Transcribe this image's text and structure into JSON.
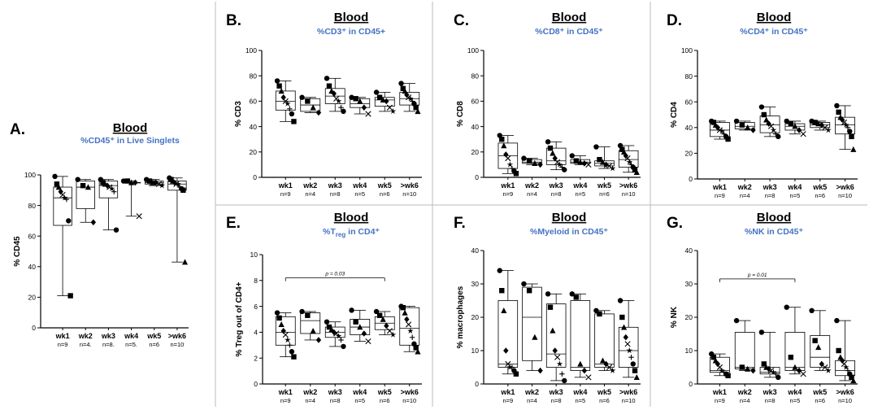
{
  "colors": {
    "title": "#000000",
    "subtitle": "#4472c4",
    "marks": "#000000"
  },
  "groups": [
    "wk1",
    "wk2",
    "wk3",
    "wk4",
    "wk5",
    ">wk6"
  ],
  "chart_data": [
    {
      "type": "boxplot",
      "panel": "A.",
      "title": "Blood",
      "subtitle": "%CD45⁺ in Live Singlets",
      "ylabel": "% CD45",
      "ylim": [
        0,
        100
      ],
      "yticks": [
        0,
        20,
        40,
        60,
        80,
        100
      ],
      "categories": [
        "wk1",
        "wk2",
        "wk3",
        "wk4",
        "wk5",
        ">wk6"
      ],
      "n_labels": [
        "n=9",
        "n=4.",
        "n=8.",
        "n=5.",
        "n=6",
        "n=10"
      ],
      "boxes": [
        {
          "min": 21,
          "q1": 67,
          "median": 85,
          "q3": 92,
          "max": 99
        },
        {
          "min": 69,
          "q1": 78,
          "median": 92,
          "q3": 96,
          "max": 97
        },
        {
          "min": 64,
          "q1": 85,
          "median": 93,
          "q3": 96,
          "max": 97
        },
        {
          "min": 73,
          "q1": 95,
          "median": 95,
          "q3": 95,
          "max": 96
        },
        {
          "min": 93,
          "q1": 94,
          "median": 95,
          "q3": 96,
          "max": 97
        },
        {
          "min": 43,
          "q1": 90,
          "median": 94,
          "q3": 96,
          "max": 98
        }
      ],
      "points": [
        [
          99,
          94,
          92,
          89,
          87,
          85,
          84,
          70,
          21
        ],
        [
          97,
          93,
          92,
          69
        ],
        [
          97,
          95,
          94,
          93,
          92,
          91,
          89,
          64
        ],
        [
          96,
          96,
          95,
          95,
          73
        ],
        [
          97,
          96,
          95,
          95,
          94,
          93
        ],
        [
          98,
          97,
          96,
          95,
          94,
          94,
          92,
          91,
          90,
          43
        ]
      ]
    },
    {
      "type": "boxplot",
      "panel": "B.",
      "title": "Blood",
      "subtitle": "%CD3⁺ in CD45+",
      "ylabel": "% CD3",
      "ylim": [
        0,
        100
      ],
      "yticks": [
        0,
        20,
        40,
        60,
        80,
        100
      ],
      "categories": [
        "wk1",
        "wk2",
        "wk3",
        "wk4",
        "wk5",
        ">wk6"
      ],
      "n_labels": [
        "n=9",
        "n=4",
        "n=8",
        "n=5",
        "n=6",
        "n=10"
      ],
      "boxes": [
        {
          "min": 44,
          "q1": 53,
          "median": 60,
          "q3": 68,
          "max": 76
        },
        {
          "min": 51,
          "q1": 52,
          "median": 57,
          "q3": 62,
          "max": 63
        },
        {
          "min": 52,
          "q1": 58,
          "median": 64,
          "q3": 70,
          "max": 78
        },
        {
          "min": 50,
          "q1": 55,
          "median": 58,
          "q3": 62,
          "max": 63
        },
        {
          "min": 52,
          "q1": 56,
          "median": 61,
          "q3": 63,
          "max": 67
        },
        {
          "min": 52,
          "q1": 57,
          "median": 62,
          "q3": 67,
          "max": 74
        }
      ],
      "points": [
        [
          76,
          72,
          68,
          63,
          60,
          58,
          54,
          50,
          44
        ],
        [
          63,
          60,
          55,
          51
        ],
        [
          78,
          72,
          68,
          66,
          62,
          60,
          55,
          52
        ],
        [
          63,
          62,
          60,
          55,
          50
        ],
        [
          67,
          63,
          61,
          60,
          55,
          52
        ],
        [
          74,
          70,
          68,
          65,
          63,
          62,
          60,
          58,
          55,
          52
        ]
      ]
    },
    {
      "type": "boxplot",
      "panel": "C.",
      "title": "Blood",
      "subtitle": "%CD8⁺ in CD45⁺",
      "ylabel": "% CD8",
      "ylim": [
        0,
        100
      ],
      "yticks": [
        0,
        20,
        40,
        60,
        80,
        100
      ],
      "categories": [
        "wk1",
        "wk2",
        "wk3",
        "wk4",
        "wk5",
        ">wk6"
      ],
      "n_labels": [
        "n=9",
        "n=4",
        "n=8",
        "n=5",
        "n=6",
        "n=10"
      ],
      "boxes": [
        {
          "min": 3,
          "q1": 7,
          "median": 17,
          "q3": 27,
          "max": 33
        },
        {
          "min": 10,
          "q1": 11,
          "median": 12,
          "q3": 14,
          "max": 15
        },
        {
          "min": 6,
          "q1": 10,
          "median": 13,
          "q3": 23,
          "max": 28
        },
        {
          "min": 10,
          "q1": 11,
          "median": 12,
          "q3": 14,
          "max": 17
        },
        {
          "min": 7,
          "q1": 9,
          "median": 11,
          "q3": 13,
          "max": 24
        },
        {
          "min": 4,
          "q1": 8,
          "median": 14,
          "q3": 21,
          "max": 25
        }
      ],
      "points": [
        [
          33,
          30,
          25,
          18,
          15,
          10,
          7,
          5,
          3
        ],
        [
          15,
          13,
          11,
          10
        ],
        [
          28,
          23,
          19,
          15,
          12,
          10,
          8,
          6
        ],
        [
          17,
          13,
          12,
          11,
          10
        ],
        [
          24,
          14,
          12,
          10,
          9,
          7
        ],
        [
          25,
          22,
          20,
          17,
          15,
          12,
          10,
          8,
          6,
          4
        ]
      ]
    },
    {
      "type": "boxplot",
      "panel": "D.",
      "title": "Blood",
      "subtitle": "%CD4⁺ in CD45⁺",
      "ylabel": "% CD4",
      "ylim": [
        0,
        100
      ],
      "yticks": [
        0,
        20,
        40,
        60,
        80,
        100
      ],
      "categories": [
        "wk1",
        "wk2",
        "wk3",
        "wk4",
        "wk5",
        ">wk6"
      ],
      "n_labels": [
        "n=9",
        "n=4",
        "n=8",
        "n=5",
        "n=6",
        "n=10"
      ],
      "boxes": [
        {
          "min": 31,
          "q1": 33,
          "median": 38,
          "q3": 44,
          "max": 45
        },
        {
          "min": 38,
          "q1": 39,
          "median": 41,
          "q3": 44,
          "max": 45
        },
        {
          "min": 33,
          "q1": 36,
          "median": 42,
          "q3": 49,
          "max": 56
        },
        {
          "min": 35,
          "q1": 38,
          "median": 41,
          "q3": 43,
          "max": 45
        },
        {
          "min": 38,
          "q1": 40,
          "median": 42,
          "q3": 44,
          "max": 45
        },
        {
          "min": 23,
          "q1": 35,
          "median": 42,
          "q3": 48,
          "max": 57
        }
      ],
      "points": [
        [
          45,
          44,
          42,
          40,
          38,
          37,
          35,
          33,
          31
        ],
        [
          45,
          42,
          40,
          38
        ],
        [
          56,
          50,
          46,
          43,
          41,
          38,
          35,
          33
        ],
        [
          45,
          43,
          41,
          38,
          35
        ],
        [
          45,
          44,
          43,
          42,
          40,
          38
        ],
        [
          57,
          52,
          48,
          46,
          44,
          42,
          40,
          37,
          33,
          23
        ]
      ]
    },
    {
      "type": "boxplot",
      "panel": "E.",
      "title": "Blood",
      "subtitle_main": "%T",
      "subtitle_sub": "reg",
      "subtitle_rest": " in CD4⁺",
      "ylabel": "% Treg  out of CD4+",
      "ylim": [
        0,
        10
      ],
      "yticks": [
        0,
        2,
        4,
        6,
        8,
        10
      ],
      "categories": [
        "wk1",
        "wk2",
        "wk3",
        "wk4",
        "wk5",
        ">wk6"
      ],
      "n_labels": [
        "n=9",
        "n=4",
        "n=8",
        "n=5",
        "n=6",
        "n=10"
      ],
      "annotation": {
        "text": "p = 0.03",
        "from": 0,
        "to": 4,
        "y": 8.2
      },
      "boxes": [
        {
          "min": 2.1,
          "q1": 3.0,
          "median": 4.0,
          "q3": 5.2,
          "max": 5.5
        },
        {
          "min": 3.4,
          "q1": 3.9,
          "median": 4.9,
          "q3": 5.5,
          "max": 5.6
        },
        {
          "min": 2.9,
          "q1": 3.6,
          "median": 4.0,
          "q3": 4.4,
          "max": 4.8
        },
        {
          "min": 3.3,
          "q1": 3.8,
          "median": 4.4,
          "q3": 5.0,
          "max": 5.7
        },
        {
          "min": 3.8,
          "q1": 4.2,
          "median": 4.7,
          "q3": 5.2,
          "max": 5.6
        },
        {
          "min": 2.5,
          "q1": 3.0,
          "median": 4.3,
          "q3": 5.9,
          "max": 6.0
        }
      ],
      "points": [
        [
          5.5,
          5.1,
          4.6,
          4.1,
          3.8,
          3.4,
          3.0,
          2.5,
          2.1
        ],
        [
          5.6,
          5.3,
          4.1,
          3.4
        ],
        [
          4.8,
          4.4,
          4.2,
          4.0,
          3.9,
          3.7,
          3.4,
          2.9
        ],
        [
          5.7,
          4.8,
          4.4,
          3.9,
          3.3
        ],
        [
          5.6,
          5.3,
          5.0,
          4.5,
          4.1,
          3.8
        ],
        [
          6.0,
          5.9,
          5.5,
          5.0,
          4.6,
          4.1,
          3.6,
          3.1,
          2.8,
          2.5
        ]
      ]
    },
    {
      "type": "boxplot",
      "panel": "F.",
      "title": "Blood",
      "subtitle": "%Myeloid in CD45⁺",
      "ylabel": "% macrophages",
      "ylim": [
        0,
        40
      ],
      "yticks": [
        0,
        10,
        20,
        30,
        40
      ],
      "categories": [
        "wk1",
        "wk2",
        "wk3",
        "wk4",
        "wk5",
        ">wk6"
      ],
      "n_labels": [
        "n=9",
        "n=4",
        "n=8",
        "n=5",
        "n=6",
        "n=10"
      ],
      "boxes": [
        {
          "min": 3,
          "q1": 5,
          "median": 6,
          "q3": 25,
          "max": 34
        },
        {
          "min": 4,
          "q1": 7,
          "median": 20,
          "q3": 29,
          "max": 30
        },
        {
          "min": 1,
          "q1": 5,
          "median": 9,
          "q3": 24,
          "max": 27
        },
        {
          "min": 2,
          "q1": 4,
          "median": 5,
          "q3": 25,
          "max": 27
        },
        {
          "min": 4,
          "q1": 5,
          "median": 6,
          "q3": 21,
          "max": 22
        },
        {
          "min": 2,
          "q1": 5,
          "median": 10,
          "q3": 17,
          "max": 25
        }
      ],
      "points": [
        [
          34,
          28,
          22,
          10,
          6,
          5,
          5,
          4,
          3
        ],
        [
          30,
          28,
          14,
          4
        ],
        [
          27,
          23,
          16,
          10,
          8,
          6,
          3,
          1
        ],
        [
          27,
          26,
          6,
          4,
          2
        ],
        [
          22,
          21,
          7,
          6,
          5,
          4
        ],
        [
          25,
          20,
          17,
          14,
          12,
          10,
          8,
          6,
          4,
          2
        ]
      ]
    },
    {
      "type": "boxplot",
      "panel": "G.",
      "title": "Blood",
      "subtitle": "%NK in CD45⁺",
      "ylabel": "% NK",
      "ylim": [
        0,
        40
      ],
      "yticks": [
        0,
        10,
        20,
        30,
        40
      ],
      "categories": [
        "wk1",
        "wk2",
        "wk3",
        "wk4",
        "wk5",
        ">wk6"
      ],
      "n_labels": [
        "n=9",
        "n=4",
        "n=8",
        "n=5",
        "n=6",
        "n=10"
      ],
      "annotation": {
        "text": "p = 0.01",
        "from": 0,
        "to": 3,
        "y": 31.5
      },
      "boxes": [
        {
          "min": 2.5,
          "q1": 3.5,
          "median": 4,
          "q3": 8,
          "max": 9
        },
        {
          "min": 4,
          "q1": 4.5,
          "median": 5,
          "q3": 15.5,
          "max": 19
        },
        {
          "min": 2,
          "q1": 3,
          "median": 3.5,
          "q3": 5,
          "max": 15.5
        },
        {
          "min": 3,
          "q1": 4,
          "median": 5,
          "q3": 15.5,
          "max": 23
        },
        {
          "min": 4,
          "q1": 5,
          "median": 8,
          "q3": 14.5,
          "max": 22
        },
        {
          "min": 1,
          "q1": 2.5,
          "median": 4,
          "q3": 7,
          "max": 19
        }
      ],
      "points": [
        [
          9,
          8,
          7,
          6,
          5,
          4,
          3.5,
          3,
          2.5
        ],
        [
          19,
          5,
          4.5,
          4
        ],
        [
          15.5,
          6,
          5,
          4.5,
          4,
          3.5,
          3,
          2
        ],
        [
          23,
          8,
          5,
          4,
          3
        ],
        [
          22,
          13,
          11,
          6,
          5,
          4
        ],
        [
          19,
          10,
          8,
          7,
          6,
          5,
          4,
          3,
          2,
          1
        ]
      ]
    }
  ]
}
